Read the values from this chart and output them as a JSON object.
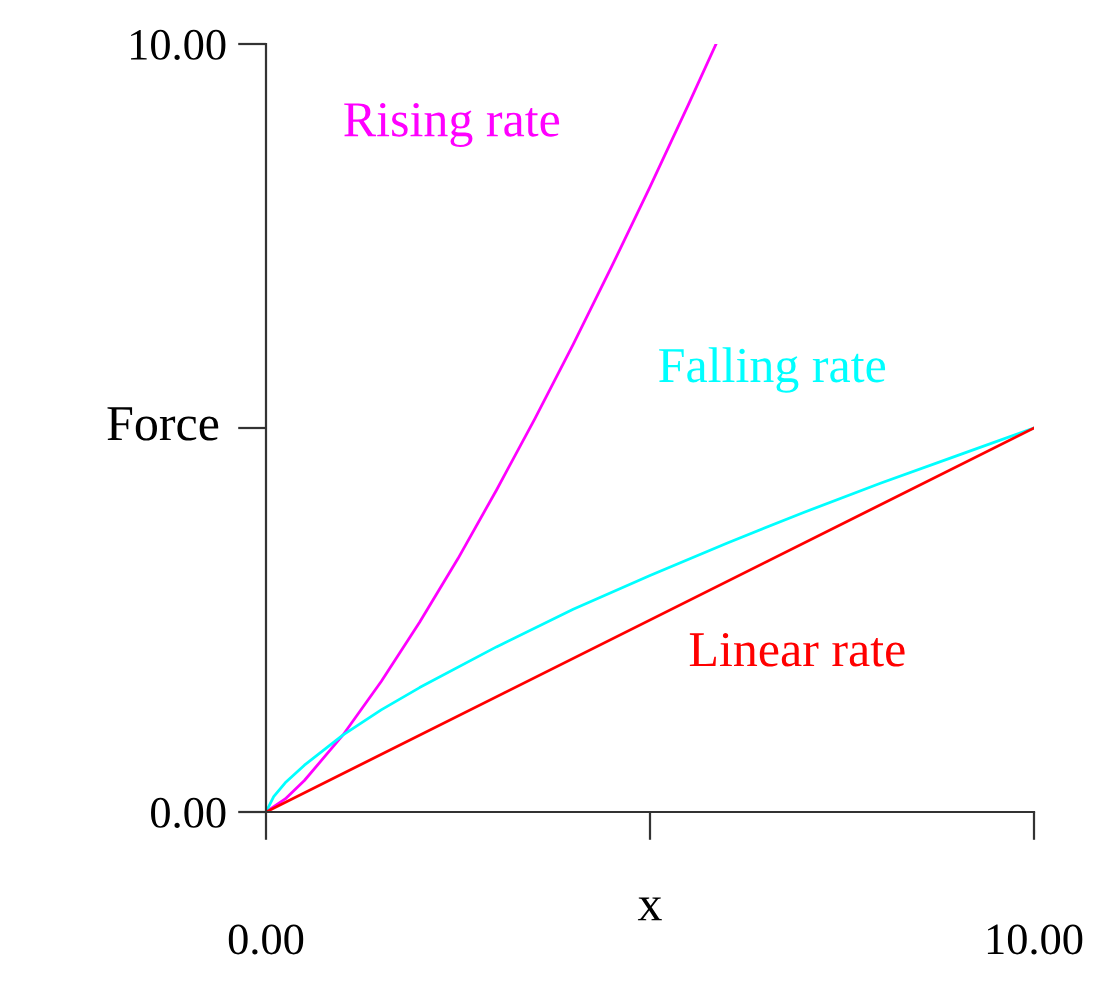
{
  "chart_data": {
    "type": "line",
    "xlabel": "x",
    "ylabel": "Force",
    "xlim": [
      0,
      10
    ],
    "ylim": [
      0,
      10
    ],
    "xticks": [
      {
        "value": 0,
        "label": "0.00"
      },
      {
        "value": 5,
        "label": null
      },
      {
        "value": 10,
        "label": "10.00"
      }
    ],
    "yticks": [
      {
        "value": 0,
        "label": "0.00"
      },
      {
        "value": 5,
        "label": null
      },
      {
        "value": 10,
        "label": "10.00"
      }
    ],
    "grid": false,
    "legend": false,
    "marker": "none",
    "line_style": "solid",
    "series": [
      {
        "name": "Rising rate",
        "color": "#ff00ff",
        "x": [
          0,
          0.25,
          0.5,
          1,
          1.5,
          2,
          2.5,
          3,
          3.5,
          4,
          4.5,
          5,
          5.5,
          5.86
        ],
        "values": [
          0,
          0.17,
          0.41,
          1.0,
          1.7,
          2.47,
          3.3,
          4.19,
          5.12,
          6.09,
          7.1,
          8.14,
          9.21,
          10
        ]
      },
      {
        "name": "Falling rate",
        "color": "#00ffff",
        "x": [
          0,
          0.1,
          0.25,
          0.5,
          1,
          1.5,
          2,
          3,
          4,
          5,
          6,
          7,
          8,
          9,
          10
        ],
        "values": [
          0,
          0.2,
          0.38,
          0.61,
          1.0,
          1.33,
          1.62,
          2.15,
          2.64,
          3.08,
          3.5,
          3.9,
          4.28,
          4.64,
          5
        ]
      },
      {
        "name": "Linear rate",
        "color": "#ff0000",
        "x": [
          0,
          10
        ],
        "values": [
          0,
          5
        ]
      }
    ]
  }
}
